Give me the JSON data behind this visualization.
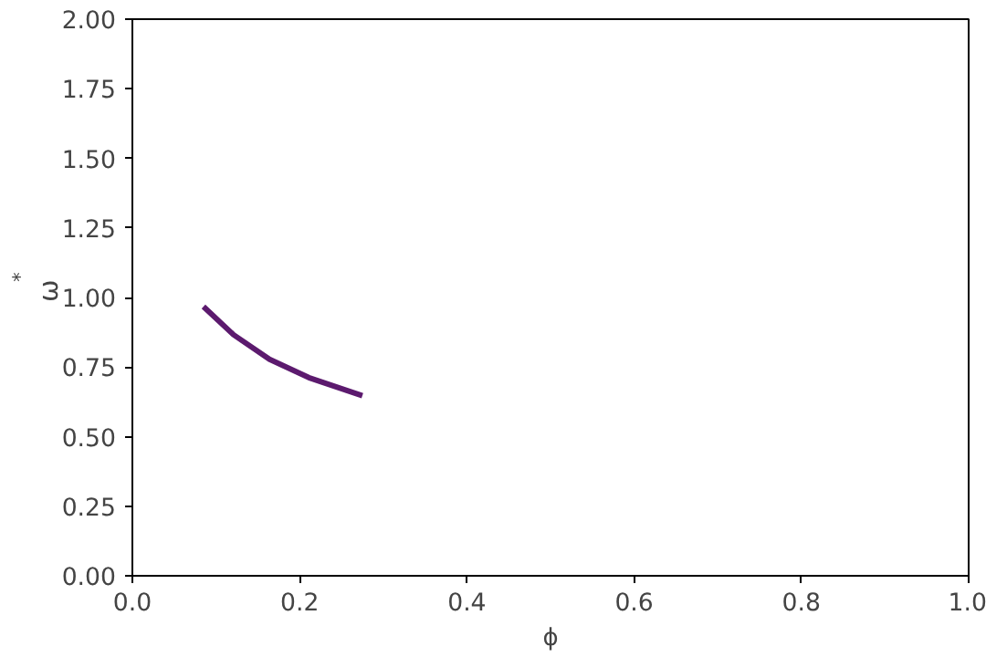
{
  "chart_data": {
    "type": "line",
    "xlabel": "ϕ",
    "ylabel": "ω$^{*}$",
    "x": [
      0.085,
      0.121,
      0.164,
      0.211,
      0.275
    ],
    "series": [
      {
        "color": "#5c1a6e",
        "values": [
          0.967,
          0.866,
          0.778,
          0.712,
          0.647
        ]
      }
    ],
    "xlim": [
      0,
      1
    ],
    "ylim": [
      0,
      2
    ],
    "xticks": [
      {
        "value": 0,
        "label": "0.0"
      },
      {
        "value": 0.2,
        "label": "0.2"
      },
      {
        "value": 0.4,
        "label": "0.4"
      },
      {
        "value": 0.6,
        "label": "0.6"
      },
      {
        "value": 0.8,
        "label": "0.8"
      },
      {
        "value": 1,
        "label": "1.0"
      }
    ],
    "yticks": [
      {
        "value": 0,
        "label": "0.00"
      },
      {
        "value": 0.25,
        "label": "0.25"
      },
      {
        "value": 0.5,
        "label": "0.50"
      },
      {
        "value": 0.75,
        "label": "0.75"
      },
      {
        "value": 1,
        "label": "1.00"
      },
      {
        "value": 1.25,
        "label": "1.25"
      },
      {
        "value": 1.5,
        "label": "1.50"
      },
      {
        "value": 1.75,
        "label": "1.75"
      },
      {
        "value": 2,
        "label": "2.00"
      }
    ],
    "grid": false
  }
}
